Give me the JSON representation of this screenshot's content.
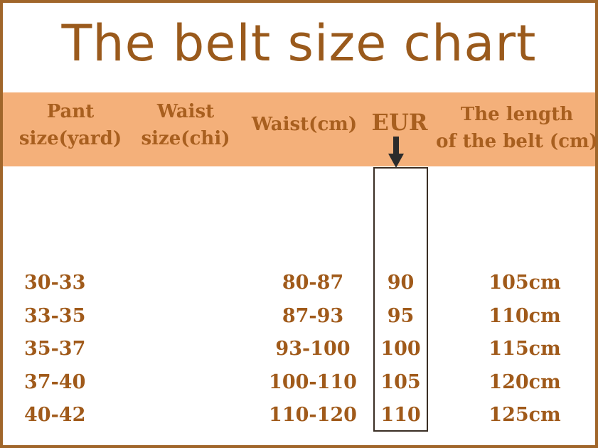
{
  "title": "The belt size chart",
  "headers": {
    "pant_size": [
      "Pant",
      "size(yard)"
    ],
    "waist_size": [
      "Waist",
      "size(chi)"
    ],
    "waist_cm": "Waist(cm)",
    "eur": "EUR",
    "belt_length": [
      "The length",
      "of the belt (cm)"
    ]
  },
  "rows": [
    {
      "pant": "30-33",
      "waist_cm": "80-87",
      "eur": "90",
      "length": "105cm"
    },
    {
      "pant": "33-35",
      "waist_cm": "87-93",
      "eur": "95",
      "length": "110cm"
    },
    {
      "pant": "35-37",
      "waist_cm": "93-100",
      "eur": "100",
      "length": "115cm"
    },
    {
      "pant": "37-40",
      "waist_cm": "100-110",
      "eur": "105",
      "length": "120cm"
    },
    {
      "pant": "40-42",
      "waist_cm": "110-120",
      "eur": "110",
      "length": "125cm"
    }
  ],
  "colors": {
    "title": "#9a5a1c",
    "header_band": "#f4b07a",
    "header_text": "#a85f1f",
    "cell_text": "#a05a1a",
    "frame": "#a0662a"
  },
  "icons": {
    "eur_pointer": "down-arrow-icon"
  }
}
